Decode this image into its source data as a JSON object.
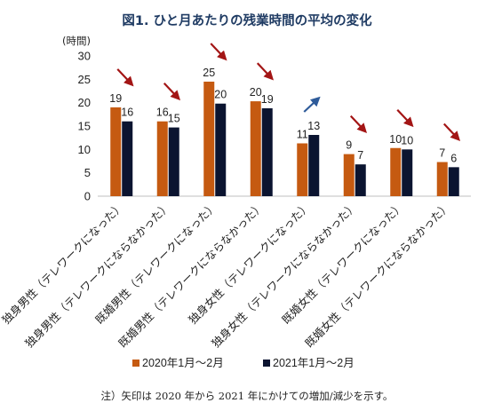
{
  "chart_data": {
    "type": "bar",
    "title": "図1. ひと月あたりの残業時間の平均の変化",
    "ylabel": "(時間)",
    "ylim": [
      0,
      30
    ],
    "yticks": [
      0,
      5,
      10,
      15,
      20,
      25,
      30
    ],
    "categories": [
      "独身男性（テレワークになった）",
      "独身男性（テレワークにならなかった）",
      "既婚男性（テレワークになった）",
      "既婚男性（テレワークにならなかった）",
      "独身女性（テレワークになった）",
      "独身女性（テレワークにならなかった）",
      "既婚女性（テレワークになった）",
      "既婚女性（テレワークにならなかった）"
    ],
    "series": [
      {
        "name": "2020年1月～2月",
        "color": "#c55a11",
        "values": [
          19,
          16,
          24.5,
          20.3,
          11.3,
          9,
          10.3,
          7.3
        ],
        "labels": [
          "19",
          "16",
          "25",
          "20",
          "11",
          "9",
          "10",
          "7"
        ]
      },
      {
        "name": "2021年1月～2月",
        "color": "#0b1430",
        "values": [
          16,
          14.7,
          19.8,
          18.8,
          13.1,
          6.8,
          10,
          6.2
        ],
        "labels": [
          "16",
          "15",
          "20",
          "19",
          "13",
          "7",
          "10",
          "6"
        ]
      }
    ],
    "trend_arrows": [
      "down",
      "down",
      "down",
      "down",
      "up",
      "down",
      "down",
      "down"
    ],
    "arrow_colors": {
      "down": "#a31515",
      "up": "#2e5b9a"
    },
    "grid": false,
    "legend_position": "bottom",
    "note": "注）矢印は 2020 年から 2021 年にかけての増加/減少を示す。"
  }
}
